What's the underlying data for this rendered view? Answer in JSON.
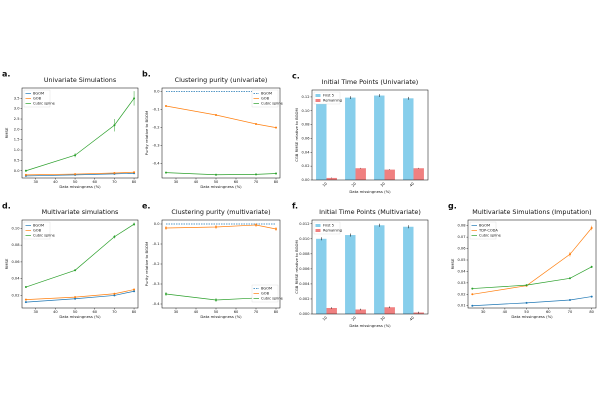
{
  "chart_data": [
    {
      "label": "a.",
      "type": "line",
      "title": "Univariate Simulations",
      "xlabel": "Data missingness (%)",
      "ylabel": "RMSE",
      "x": [
        25,
        50,
        70,
        80
      ],
      "xlim": [
        23,
        82
      ],
      "xticks": [
        30,
        40,
        50,
        60,
        70,
        80
      ],
      "ylim": [
        -0.35,
        4.0
      ],
      "yticks": [
        {
          "value": 0,
          "label": "0.0"
        },
        0.5,
        {
          "value": 1,
          "label": "1.0"
        },
        1.5,
        {
          "value": 2,
          "label": "2.0"
        },
        2.5,
        {
          "value": 3,
          "label": "3.0"
        },
        3.5
      ],
      "legend": "upper left",
      "series": [
        {
          "name": "BGOM",
          "color": "#1f77b4",
          "values": [
            -0.25,
            -0.2,
            -0.15,
            -0.12
          ],
          "errors": [
            0.02,
            0.02,
            0.02,
            0.02
          ]
        },
        {
          "name": "GOB",
          "color": "#ff7f0e",
          "values": [
            -0.2,
            -0.16,
            -0.11,
            -0.07
          ],
          "errors": [
            0.02,
            0.02,
            0.02,
            0.02
          ]
        },
        {
          "name": "Cubic spline",
          "color": "#2ca02c",
          "values": [
            0.0,
            0.75,
            2.2,
            3.5
          ],
          "errors": [
            0.05,
            0.1,
            0.3,
            0.35
          ]
        }
      ]
    },
    {
      "label": "b.",
      "type": "line",
      "title": "Clustering purity (univariate)",
      "xlabel": "Data missingness (%)",
      "ylabel": "Purity relative to BGOM",
      "x": [
        25,
        50,
        70,
        80
      ],
      "xlim": [
        23,
        82
      ],
      "xticks": [
        30,
        40,
        50,
        60,
        70,
        80
      ],
      "ylim": [
        -0.48,
        0.02
      ],
      "yticks": [
        {
          "value": 0,
          "label": "0.0"
        },
        -0.1,
        -0.2,
        -0.3,
        -0.4
      ],
      "legend": "upper right",
      "series": [
        {
          "name": "BGOM",
          "color": "#1f77b4",
          "values": [
            0,
            0,
            0,
            0
          ],
          "linestyle": "dashed"
        },
        {
          "name": "GOB",
          "color": "#ff7f0e",
          "values": [
            -0.08,
            -0.13,
            -0.18,
            -0.2
          ],
          "errors": [
            0.005,
            0.005,
            0.005,
            0.005
          ]
        },
        {
          "name": "Cubic spline",
          "color": "#2ca02c",
          "values": [
            -0.45,
            -0.462,
            -0.46,
            -0.455
          ],
          "errors": [
            0.005,
            0.005,
            0.005,
            0.005
          ]
        }
      ]
    },
    {
      "label": "c.",
      "type": "bar",
      "title": "Initial Time Points (Univariate)",
      "xlabel": "Data missingness (%)",
      "ylabel": "CGB RMSE relative to BGOM",
      "categories": [
        "10",
        "20",
        "30",
        "40"
      ],
      "ylim": [
        0,
        0.13
      ],
      "yticks": [
        {
          "value": 0,
          "label": "0.00"
        },
        0.02,
        0.04,
        0.06,
        0.08,
        {
          "value": 0.1,
          "label": "0.10"
        },
        0.12
      ],
      "legend": "upper left",
      "series": [
        {
          "name": "First 5",
          "color": "#87ceeb",
          "values": [
            0.112,
            0.119,
            0.122,
            0.118
          ],
          "errors": [
            0.002,
            0.002,
            0.002,
            0.002
          ]
        },
        {
          "name": "Remaining",
          "color": "#f08080",
          "values": [
            0.003,
            0.017,
            0.015,
            0.017
          ],
          "errors": [
            0.0005,
            0.0005,
            0.0005,
            0.0005
          ]
        }
      ]
    },
    {
      "label": "d.",
      "type": "line",
      "title": "Multivariate simulations",
      "xlabel": "Data missingness (%)",
      "ylabel": "RMSE",
      "x": [
        25,
        50,
        70,
        80
      ],
      "xlim": [
        23,
        82
      ],
      "xticks": [
        30,
        40,
        50,
        60,
        70,
        80
      ],
      "ylim": [
        0.005,
        0.11
      ],
      "yticks": [
        0.02,
        0.04,
        0.06,
        0.08,
        {
          "value": 0.1,
          "label": "0.10"
        }
      ],
      "legend": "upper left",
      "series": [
        {
          "name": "BGOM",
          "color": "#1f77b4",
          "values": [
            0.012,
            0.016,
            0.02,
            0.025
          ],
          "errors": [
            0.001,
            0.001,
            0.001,
            0.001
          ]
        },
        {
          "name": "GOB",
          "color": "#ff7f0e",
          "values": [
            0.015,
            0.018,
            0.022,
            0.027
          ],
          "errors": [
            0.001,
            0.001,
            0.001,
            0.001
          ]
        },
        {
          "name": "Cubic spline",
          "color": "#2ca02c",
          "values": [
            0.03,
            0.05,
            0.09,
            0.105
          ],
          "errors": [
            0.001,
            0.001,
            0.002,
            0.002
          ]
        }
      ]
    },
    {
      "label": "e.",
      "type": "line",
      "title": "Clustering purity (multivariate)",
      "xlabel": "Data missingness (%)",
      "ylabel": "Purity relative to BGOM",
      "x": [
        25,
        50,
        70,
        80
      ],
      "xlim": [
        23,
        82
      ],
      "xticks": [
        30,
        40,
        50,
        60,
        70,
        80
      ],
      "ylim": [
        -0.42,
        0.02
      ],
      "yticks": [
        {
          "value": 0,
          "label": "0.0"
        },
        -0.1,
        -0.2,
        -0.3,
        -0.4
      ],
      "legend": "lower right",
      "series": [
        {
          "name": "BGOM",
          "color": "#1f77b4",
          "values": [
            0,
            0,
            0,
            0
          ],
          "linestyle": "dashed"
        },
        {
          "name": "GOB",
          "color": "#ff7f0e",
          "values": [
            -0.02,
            -0.015,
            -0.005,
            -0.025
          ],
          "errors": [
            0.01,
            0.01,
            0.01,
            0.01
          ]
        },
        {
          "name": "Cubic spline",
          "color": "#2ca02c",
          "values": [
            -0.35,
            -0.38,
            -0.37,
            -0.375
          ],
          "errors": [
            0.01,
            0.01,
            0.01,
            0.01
          ]
        }
      ]
    },
    {
      "label": "f.",
      "type": "bar",
      "title": "Initial Time Points (Multivariate)",
      "xlabel": "Data missingness (%)",
      "ylabel": "CGB RMSE relative to BGOM",
      "categories": [
        "10",
        "20",
        "30",
        "40"
      ],
      "ylim": [
        0,
        0.0125
      ],
      "yticks": [
        {
          "value": 0,
          "label": "0.000"
        },
        0.002,
        0.004,
        0.006,
        0.008,
        {
          "value": 0.01,
          "label": "0.010"
        },
        0.012
      ],
      "legend": "upper left",
      "series": [
        {
          "name": "First 5",
          "color": "#87ceeb",
          "values": [
            0.01,
            0.0105,
            0.0118,
            0.0116
          ],
          "errors": [
            0.0002,
            0.0002,
            0.0002,
            0.0002
          ]
        },
        {
          "name": "Remaining",
          "color": "#f08080",
          "values": [
            0.0008,
            0.0006,
            0.0009,
            0.0002
          ],
          "errors": [
            0.0001,
            0.0001,
            0.0001,
            0.0001
          ]
        }
      ]
    },
    {
      "label": "g.",
      "type": "line",
      "title": "Multivariate Simulations (Imputation)",
      "xlabel": "Data missingness (%)",
      "ylabel": "RMSE",
      "x": [
        25,
        50,
        70,
        80
      ],
      "xlim": [
        23,
        82
      ],
      "xticks": [
        30,
        40,
        50,
        60,
        70,
        80
      ],
      "ylim": [
        0.008,
        0.085
      ],
      "yticks": [
        0.01,
        0.02,
        0.03,
        0.04,
        0.05,
        0.06,
        0.07,
        0.08
      ],
      "legend": "upper left",
      "series": [
        {
          "name": "BGOM",
          "color": "#1f77b4",
          "values": [
            0.01,
            0.0125,
            0.015,
            0.018
          ],
          "errors": [
            0.0005,
            0.0005,
            0.0005,
            0.0005
          ]
        },
        {
          "name": "TDP-CODA",
          "color": "#ff7f0e",
          "values": [
            0.02,
            0.0275,
            0.055,
            0.078
          ],
          "errors": [
            0.0005,
            0.0005,
            0.002,
            0.002
          ]
        },
        {
          "name": "Cubic spline",
          "color": "#2ca02c",
          "values": [
            0.025,
            0.028,
            0.034,
            0.044
          ],
          "errors": [
            0.0005,
            0.0005,
            0.0005,
            0.001
          ]
        }
      ]
    }
  ]
}
